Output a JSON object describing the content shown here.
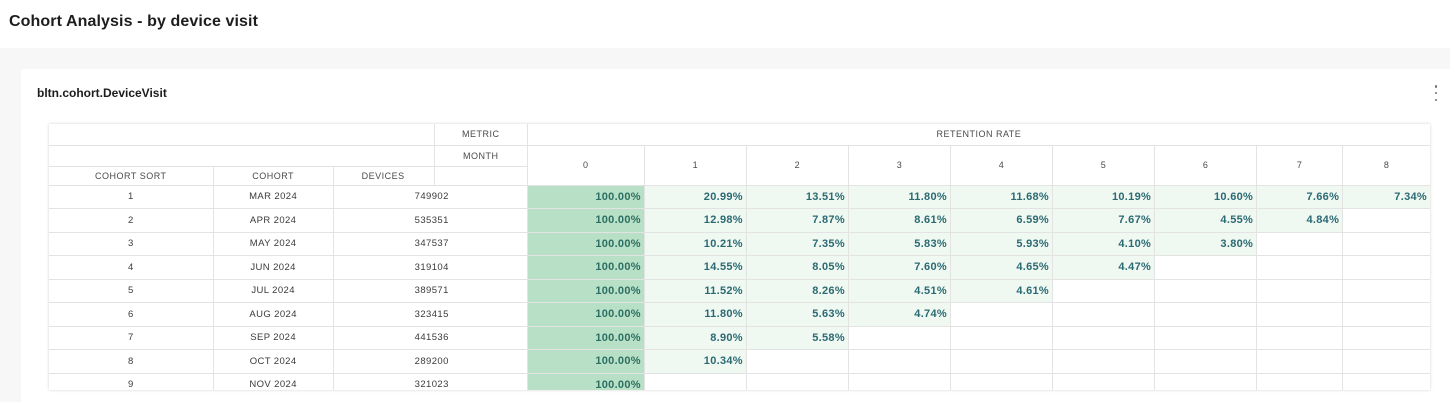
{
  "page": {
    "title": "Cohort Analysis - by device visit"
  },
  "card": {
    "title": "bltn.cohort.DeviceVisit",
    "menu_icon": "kebab-menu-icon"
  },
  "table": {
    "metric_label": "METRIC",
    "month_label": "MONTH",
    "metric_value": "RETENTION RATE",
    "columns": {
      "cohort_sort": "COHORT SORT",
      "cohort": "COHORT",
      "devices": "DEVICES"
    },
    "months": [
      "0",
      "1",
      "2",
      "3",
      "4",
      "5",
      "6",
      "7",
      "8"
    ],
    "rows": [
      {
        "sort": "1",
        "cohort": "MAR 2024",
        "devices": "749902",
        "rates": [
          "100.00%",
          "20.99%",
          "13.51%",
          "11.80%",
          "11.68%",
          "10.19%",
          "10.60%",
          "7.66%",
          "7.34%"
        ]
      },
      {
        "sort": "2",
        "cohort": "APR 2024",
        "devices": "535351",
        "rates": [
          "100.00%",
          "12.98%",
          "7.87%",
          "8.61%",
          "6.59%",
          "7.67%",
          "4.55%",
          "4.84%"
        ]
      },
      {
        "sort": "3",
        "cohort": "MAY 2024",
        "devices": "347537",
        "rates": [
          "100.00%",
          "10.21%",
          "7.35%",
          "5.83%",
          "5.93%",
          "4.10%",
          "3.80%"
        ]
      },
      {
        "sort": "4",
        "cohort": "JUN 2024",
        "devices": "319104",
        "rates": [
          "100.00%",
          "14.55%",
          "8.05%",
          "7.60%",
          "4.65%",
          "4.47%"
        ]
      },
      {
        "sort": "5",
        "cohort": "JUL 2024",
        "devices": "389571",
        "rates": [
          "100.00%",
          "11.52%",
          "8.26%",
          "4.51%",
          "4.61%"
        ]
      },
      {
        "sort": "6",
        "cohort": "AUG 2024",
        "devices": "323415",
        "rates": [
          "100.00%",
          "11.80%",
          "5.63%",
          "4.74%"
        ]
      },
      {
        "sort": "7",
        "cohort": "SEP 2024",
        "devices": "441536",
        "rates": [
          "100.00%",
          "8.90%",
          "5.58%"
        ]
      },
      {
        "sort": "8",
        "cohort": "OCT 2024",
        "devices": "289200",
        "rates": [
          "100.00%",
          "10.34%"
        ]
      },
      {
        "sort": "9",
        "cohort": "NOV 2024",
        "devices": "321023",
        "rates": [
          "100.00%"
        ]
      }
    ]
  },
  "colors": {
    "first_col_fill": "#b8e0c6",
    "value_fill": "#f0f8f2",
    "value_text": "#2a6a72"
  }
}
